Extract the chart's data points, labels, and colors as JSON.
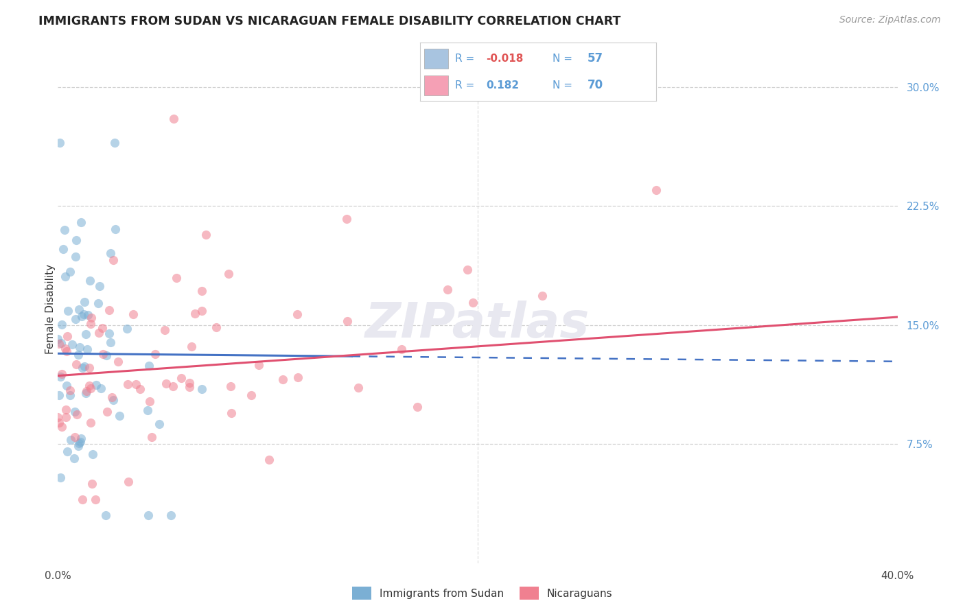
{
  "title": "IMMIGRANTS FROM SUDAN VS NICARAGUAN FEMALE DISABILITY CORRELATION CHART",
  "source": "Source: ZipAtlas.com",
  "ylabel": "Female Disability",
  "right_yticks": [
    "7.5%",
    "15.0%",
    "22.5%",
    "30.0%"
  ],
  "right_ytick_vals": [
    0.075,
    0.15,
    0.225,
    0.3
  ],
  "legend_color1": "#a8c4e0",
  "legend_color2": "#f5a0b5",
  "series1_color": "#7bafd4",
  "series2_color": "#f08090",
  "trendline1_color": "#4472c4",
  "trendline2_color": "#e05070",
  "watermark_text": "ZIPatlas",
  "watermark_color": "#e8e8f0",
  "xlim": [
    0.0,
    0.4
  ],
  "ylim": [
    0.0,
    0.32
  ],
  "background_color": "#ffffff",
  "grid_color": "#cccccc",
  "bottom_legend1": "Immigrants from Sudan",
  "bottom_legend2": "Nicaraguans",
  "legend_text_color": "#5b9bd5",
  "r1_color": "#e05555",
  "r2_color": "#5b9bd5",
  "n_color": "#5b9bd5"
}
